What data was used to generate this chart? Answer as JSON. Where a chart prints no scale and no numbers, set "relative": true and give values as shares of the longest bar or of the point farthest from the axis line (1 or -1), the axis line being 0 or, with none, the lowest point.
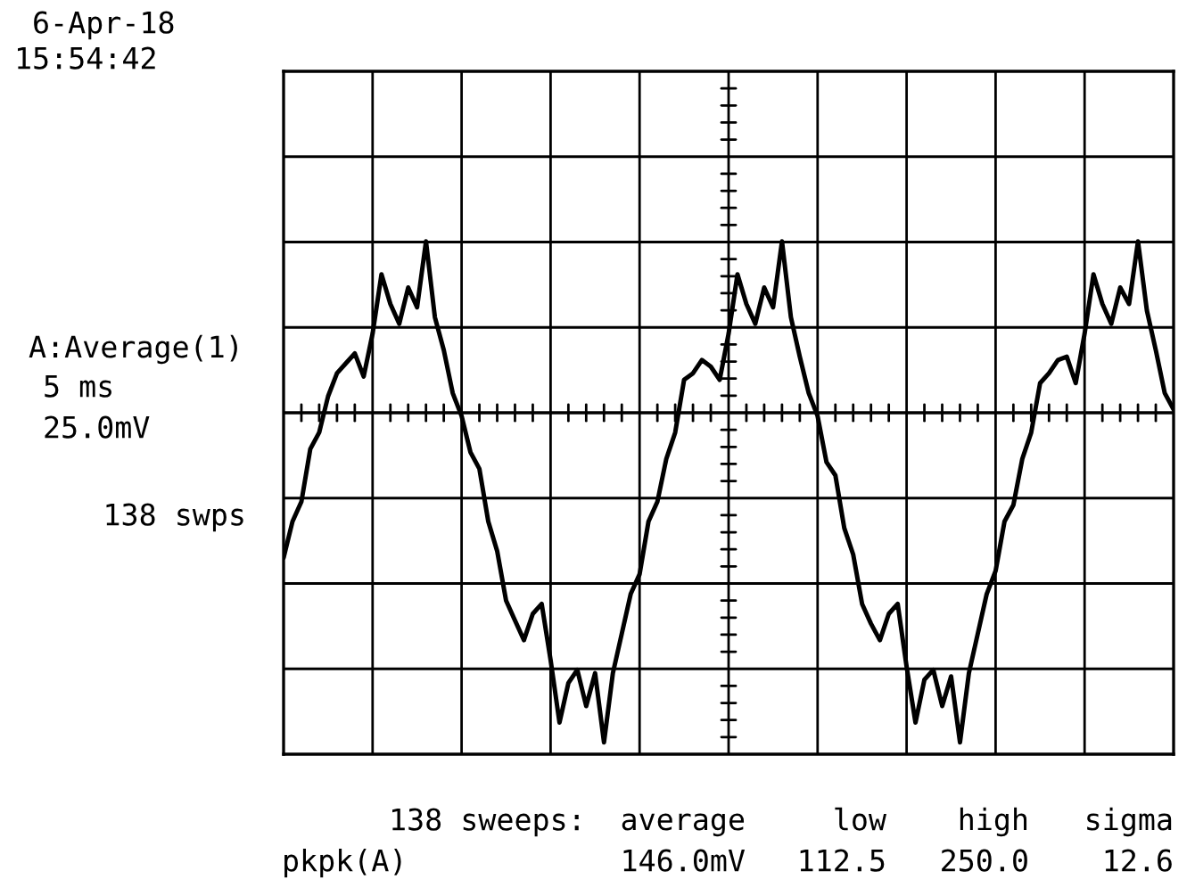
{
  "chart_data": {
    "type": "line",
    "relative": true,
    "grid": true,
    "legend": false,
    "marker": "none",
    "line_style": "solid",
    "categories": [
      null,
      null,
      null,
      null,
      null,
      null,
      null,
      null,
      null,
      null,
      null,
      null,
      null,
      null,
      null,
      null,
      null,
      null,
      null,
      null,
      null,
      null,
      null,
      null,
      null,
      null,
      null,
      null,
      null,
      null,
      null,
      null,
      null,
      null,
      null,
      null,
      null,
      null,
      null,
      null,
      null,
      null,
      null,
      null,
      null,
      null,
      null,
      null,
      null,
      null,
      null,
      null,
      null,
      null,
      null,
      null,
      null,
      null,
      null,
      null,
      null,
      null,
      null,
      null,
      null,
      null,
      null,
      null,
      null,
      null,
      null,
      null,
      null,
      null,
      null,
      null,
      null,
      null,
      null,
      null,
      null,
      null,
      null,
      null,
      null,
      null,
      null,
      null,
      null,
      null,
      null,
      null,
      null,
      null,
      null,
      null,
      null,
      null,
      null,
      null,
      null
    ],
    "series": [
      {
        "color": "#000000",
        "values": [
          -0.44,
          -0.33,
          -0.27,
          -0.11,
          -0.06,
          0.05,
          0.12,
          0.15,
          0.18,
          0.11,
          0.24,
          0.42,
          0.33,
          0.27,
          0.38,
          0.32,
          0.52,
          0.29,
          0.19,
          0.06,
          -0.01,
          -0.12,
          -0.17,
          -0.33,
          -0.42,
          -0.57,
          -0.63,
          -0.69,
          -0.61,
          -0.58,
          -0.75,
          -0.94,
          -0.82,
          -0.78,
          -0.89,
          -0.79,
          -1.0,
          -0.79,
          -0.67,
          -0.55,
          -0.49,
          -0.33,
          -0.27,
          -0.14,
          -0.06,
          0.1,
          0.12,
          0.16,
          0.14,
          0.1,
          0.24,
          0.42,
          0.33,
          0.27,
          0.38,
          0.32,
          0.52,
          0.29,
          0.17,
          0.06,
          -0.01,
          -0.15,
          -0.19,
          -0.35,
          -0.43,
          -0.58,
          -0.64,
          -0.69,
          -0.61,
          -0.58,
          -0.77,
          -0.94,
          -0.81,
          -0.78,
          -0.89,
          -0.8,
          -1.0,
          -0.79,
          -0.67,
          -0.55,
          -0.48,
          -0.33,
          -0.28,
          -0.14,
          -0.06,
          0.09,
          0.12,
          0.16,
          0.17,
          0.09,
          0.24,
          0.42,
          0.33,
          0.27,
          0.38,
          0.33,
          0.52,
          0.31,
          0.19,
          0.06,
          0.01
        ]
      }
    ],
    "annotations": [
      "6-Apr-18",
      "15:54:42",
      "A:Average(1)",
      "5 ms",
      "25.0mV",
      "138 swps",
      "138 sweeps:",
      "average",
      "low",
      "high",
      "sigma",
      "pkpk(A)",
      "146.0mV",
      "112.5",
      "250.0",
      "12.6"
    ]
  }
}
